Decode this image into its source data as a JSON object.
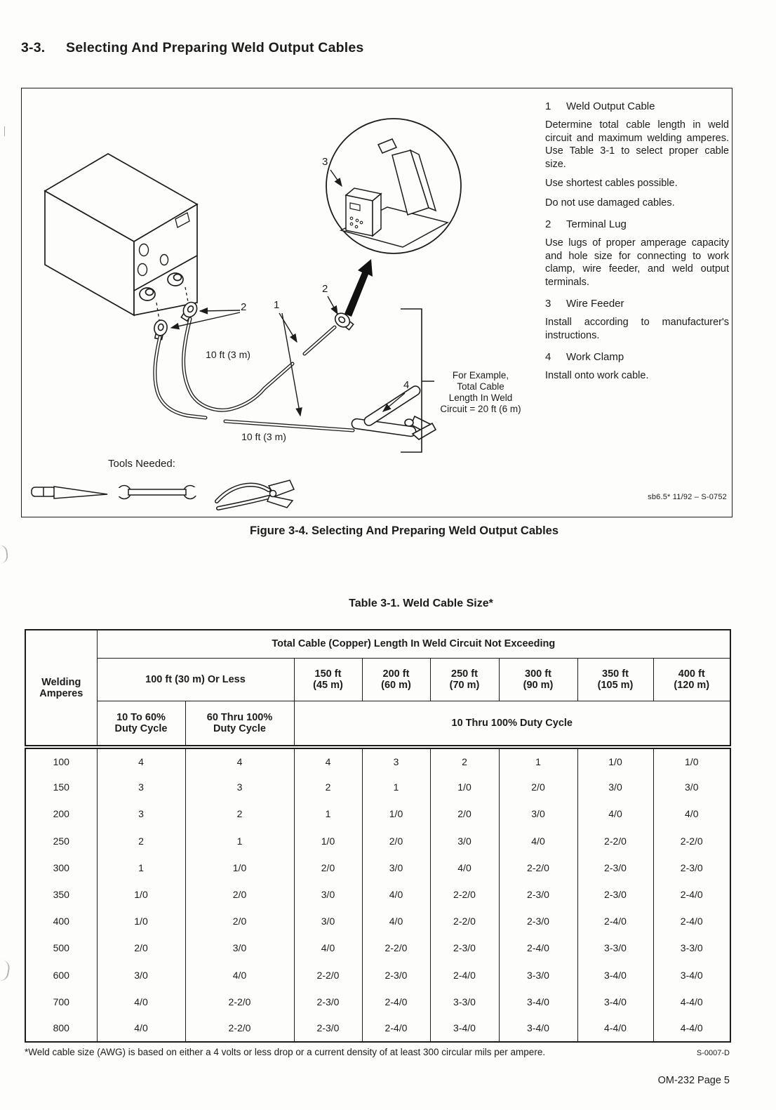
{
  "page": {
    "heading_number": "3-3.",
    "heading_title": "Selecting And Preparing Weld Output Cables",
    "figure_caption": "Figure 3-4. Selecting And Preparing Weld Output Cables",
    "table_title": "Table 3-1. Weld Cable Size*",
    "footnote": "*Weld cable size (AWG) is based on either a 4 volts or less drop or a current density of at least 300 circular mils per ampere.",
    "footnote_code": "S-0007-D",
    "footer_page": "OM-232 Page 5"
  },
  "figure": {
    "stamp": "sb6.5* 11/92 – S-0752",
    "tools_label": "Tools Needed:",
    "labels": {
      "cable_length_top": "10 ft (3 m)",
      "cable_length_bottom": "10 ft (3 m)",
      "example_note": "For Example,\nTotal Cable\nLength In Weld\nCircuit = 20 ft (6 m)",
      "num_1": "1",
      "num_2_left": "2",
      "num_2_right": "2",
      "num_3": "3",
      "num_4": "4"
    },
    "callouts": [
      {
        "num": "1",
        "title": "Weld Output Cable",
        "paragraphs": [
          "Determine total cable length in weld circuit and maximum welding amperes. Use Table 3-1 to select proper cable size.",
          "Use shortest cables possible.",
          "Do not use damaged cables."
        ]
      },
      {
        "num": "2",
        "title": "Terminal Lug",
        "paragraphs": [
          "Use lugs of proper amperage capacity and hole size for connecting to work clamp, wire feeder, and weld output terminals."
        ]
      },
      {
        "num": "3",
        "title": "Wire Feeder",
        "paragraphs": [
          "Install according to manufacturer's instructions."
        ]
      },
      {
        "num": "4",
        "title": "Work Clamp",
        "paragraphs": [
          "Install onto work cable."
        ]
      }
    ]
  },
  "table": {
    "span_header": "Total Cable (Copper) Length In Weld Circuit Not Exceeding",
    "amperes_header": "Welding\nAmperes",
    "length_headers": [
      "100 ft (30 m) Or Less",
      "150 ft\n(45 m)",
      "200 ft\n(60 m)",
      "250 ft\n(70 m)",
      "300 ft\n(90 m)",
      "350 ft\n(105 m)",
      "400 ft\n(120 m)"
    ],
    "duty_headers": [
      "10 To 60%\nDuty Cycle",
      "60 Thru 100%\nDuty Cycle",
      "10 Thru 100% Duty Cycle"
    ],
    "rows": [
      {
        "amperes": "100",
        "sizes": [
          "4",
          "4",
          "4",
          "3",
          "2",
          "1",
          "1/0",
          "1/0"
        ]
      },
      {
        "amperes": "150",
        "sizes": [
          "3",
          "3",
          "2",
          "1",
          "1/0",
          "2/0",
          "3/0",
          "3/0"
        ]
      },
      {
        "amperes": "200",
        "sizes": [
          "3",
          "2",
          "1",
          "1/0",
          "2/0",
          "3/0",
          "4/0",
          "4/0"
        ]
      },
      {
        "amperes": "250",
        "sizes": [
          "2",
          "1",
          "1/0",
          "2/0",
          "3/0",
          "4/0",
          "2-2/0",
          "2-2/0"
        ]
      },
      {
        "amperes": "300",
        "sizes": [
          "1",
          "1/0",
          "2/0",
          "3/0",
          "4/0",
          "2-2/0",
          "2-3/0",
          "2-3/0"
        ]
      },
      {
        "amperes": "350",
        "sizes": [
          "1/0",
          "2/0",
          "3/0",
          "4/0",
          "2-2/0",
          "2-3/0",
          "2-3/0",
          "2-4/0"
        ]
      },
      {
        "amperes": "400",
        "sizes": [
          "1/0",
          "2/0",
          "3/0",
          "4/0",
          "2-2/0",
          "2-3/0",
          "2-4/0",
          "2-4/0"
        ]
      },
      {
        "amperes": "500",
        "sizes": [
          "2/0",
          "3/0",
          "4/0",
          "2-2/0",
          "2-3/0",
          "2-4/0",
          "3-3/0",
          "3-3/0"
        ]
      },
      {
        "amperes": "600",
        "sizes": [
          "3/0",
          "4/0",
          "2-2/0",
          "2-3/0",
          "2-4/0",
          "3-3/0",
          "3-4/0",
          "3-4/0"
        ]
      },
      {
        "amperes": "700",
        "sizes": [
          "4/0",
          "2-2/0",
          "2-3/0",
          "2-4/0",
          "3-3/0",
          "3-4/0",
          "3-4/0",
          "4-4/0"
        ]
      },
      {
        "amperes": "800",
        "sizes": [
          "4/0",
          "2-2/0",
          "2-3/0",
          "2-4/0",
          "3-4/0",
          "3-4/0",
          "4-4/0",
          "4-4/0"
        ]
      }
    ]
  },
  "colors": {
    "ink": "#1c1c1c",
    "paper": "#fdfdfb"
  }
}
